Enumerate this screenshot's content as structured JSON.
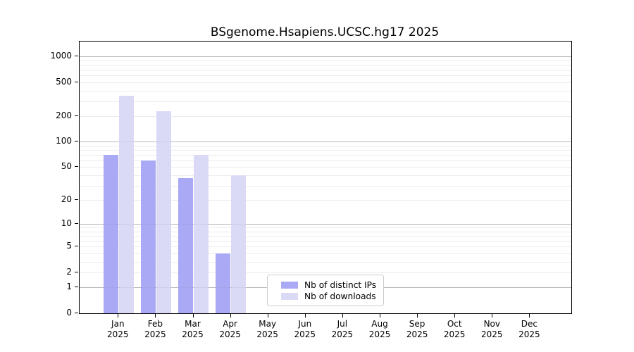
{
  "title": "BSgenome.Hsapiens.UCSC.hg17 2025",
  "chart_data": {
    "type": "bar",
    "title": "BSgenome.Hsapiens.UCSC.hg17 2025",
    "yscale": "log1p",
    "ylim": [
      0,
      1500
    ],
    "grid": "horizontal",
    "legend_position": "inside-bottom-center",
    "categories": [
      "Jan",
      "Feb",
      "Mar",
      "Apr",
      "May",
      "Jun",
      "Jul",
      "Aug",
      "Sep",
      "Oct",
      "Nov",
      "Dec"
    ],
    "year_label": "2025",
    "yticks": [
      0,
      1,
      2,
      5,
      10,
      20,
      50,
      100,
      200,
      500,
      1000
    ],
    "series": [
      {
        "name": "Nb of distinct IPs",
        "color": "#a9a9f5",
        "values": [
          70,
          60,
          37,
          4,
          0,
          0,
          0,
          0,
          0,
          0,
          0,
          0
        ]
      },
      {
        "name": "Nb of downloads",
        "color": "#dadaf7",
        "values": [
          350,
          230,
          70,
          40,
          0,
          0,
          0,
          0,
          0,
          0,
          0,
          0
        ]
      }
    ]
  },
  "colors": {
    "grid_major": "#c2c2c2",
    "grid_minor": "#ececec",
    "axis": "#000000",
    "legend_border": "#cccccc",
    "background": "#ffffff"
  }
}
